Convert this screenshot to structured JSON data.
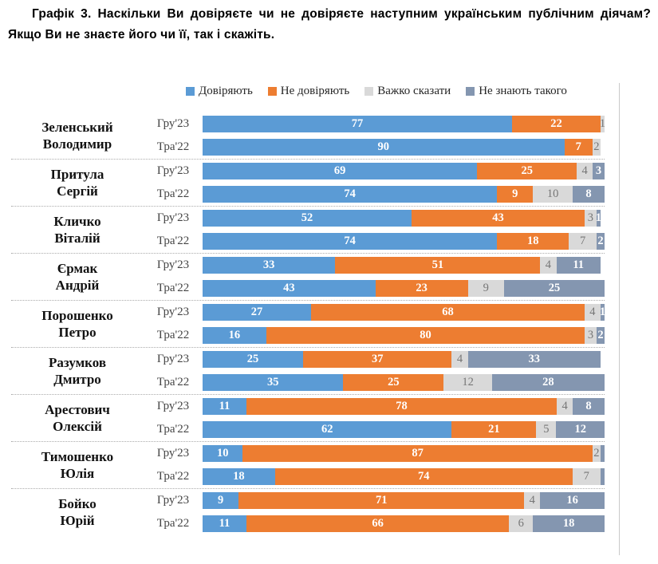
{
  "title": "Графік 3. Наскільки Ви довіряєте чи не довіряєте наступним українським публічним діячам? Якщо Ви не знаєте його чи її, так і скажіть.",
  "colors": {
    "trust": "#5B9BD5",
    "distrust": "#ED7D31",
    "hard": "#D9D9D9",
    "unknown": "#8496B0",
    "separator": "#ababab",
    "hard_label": "#767676",
    "period_label": "#444444"
  },
  "legend": [
    {
      "key": "trust",
      "label": "Довіряють"
    },
    {
      "key": "distrust",
      "label": "Не довіряють"
    },
    {
      "key": "hard",
      "label": "Важко сказати"
    },
    {
      "key": "unknown",
      "label": "Не знають такого"
    }
  ],
  "chart_data": {
    "type": "bar",
    "orientation": "horizontal-stacked",
    "xlim": [
      0,
      100
    ],
    "grid": false,
    "legend_position": "top",
    "series": [
      "Довіряють",
      "Не довіряють",
      "Важко сказати",
      "Не знають такого"
    ],
    "period_order": [
      "Гру'23",
      "Тра'22"
    ],
    "groups": [
      {
        "name": "Зеленський Володимир",
        "name_lines": [
          "Зеленський",
          "Володимир"
        ],
        "rows": [
          {
            "period": "Гру'23",
            "values": [
              77,
              22,
              1,
              0
            ],
            "labels": [
              "77",
              "22",
              "1",
              ""
            ]
          },
          {
            "period": "Тра'22",
            "values": [
              90,
              7,
              2,
              0
            ],
            "labels": [
              "90",
              "7",
              "2",
              ""
            ]
          }
        ]
      },
      {
        "name": "Притула Сергій",
        "name_lines": [
          "Притула",
          "Сергій"
        ],
        "rows": [
          {
            "period": "Гру'23",
            "values": [
              69,
              25,
              4,
              3
            ],
            "labels": [
              "69",
              "25",
              "4",
              "3"
            ]
          },
          {
            "period": "Тра'22",
            "values": [
              74,
              9,
              10,
              8
            ],
            "labels": [
              "74",
              "9",
              "10",
              "8"
            ]
          }
        ]
      },
      {
        "name": "Кличко Віталій",
        "name_lines": [
          "Кличко",
          "Віталій"
        ],
        "rows": [
          {
            "period": "Гру'23",
            "values": [
              52,
              43,
              3,
              1
            ],
            "labels": [
              "52",
              "43",
              "3",
              "1"
            ]
          },
          {
            "period": "Тра'22",
            "values": [
              74,
              18,
              7,
              2
            ],
            "labels": [
              "74",
              "18",
              "7",
              "2"
            ]
          }
        ]
      },
      {
        "name": "Єрмак Андрій",
        "name_lines": [
          "Єрмак",
          "Андрій"
        ],
        "rows": [
          {
            "period": "Гру'23",
            "values": [
              33,
              51,
              4,
              11
            ],
            "labels": [
              "33",
              "51",
              "4",
              "11"
            ]
          },
          {
            "period": "Тра'22",
            "values": [
              43,
              23,
              9,
              25
            ],
            "labels": [
              "43",
              "23",
              "9",
              "25"
            ]
          }
        ]
      },
      {
        "name": "Порошенко Петро",
        "name_lines": [
          "Порошенко",
          "Петро"
        ],
        "rows": [
          {
            "period": "Гру'23",
            "values": [
              27,
              68,
              4,
              1
            ],
            "labels": [
              "27",
              "68",
              "4",
              "1"
            ]
          },
          {
            "period": "Тра'22",
            "values": [
              16,
              80,
              3,
              2
            ],
            "labels": [
              "16",
              "80",
              "3",
              "2"
            ]
          }
        ]
      },
      {
        "name": "Разумков Дмитро",
        "name_lines": [
          "Разумков",
          "Дмитро"
        ],
        "rows": [
          {
            "period": "Гру'23",
            "values": [
              25,
              37,
              4,
              33
            ],
            "labels": [
              "25",
              "37",
              "4",
              "33"
            ]
          },
          {
            "period": "Тра'22",
            "values": [
              35,
              25,
              12,
              28
            ],
            "labels": [
              "35",
              "25",
              "12",
              "28"
            ]
          }
        ]
      },
      {
        "name": "Арестович Олексій",
        "name_lines": [
          "Арестович",
          "Олексій"
        ],
        "rows": [
          {
            "period": "Гру'23",
            "values": [
              11,
              78,
              4,
              8
            ],
            "labels": [
              "11",
              "78",
              "4",
              "8"
            ]
          },
          {
            "period": "Тра'22",
            "values": [
              62,
              21,
              5,
              12
            ],
            "labels": [
              "62",
              "21",
              "5",
              "12"
            ]
          }
        ]
      },
      {
        "name": "Тимошенко Юлія",
        "name_lines": [
          "Тимошенко",
          "Юлія"
        ],
        "rows": [
          {
            "period": "Гру'23",
            "values": [
              10,
              87,
              2,
              1
            ],
            "labels": [
              "10",
              "87",
              "2",
              ""
            ]
          },
          {
            "period": "Тра'22",
            "values": [
              18,
              74,
              7,
              1
            ],
            "labels": [
              "18",
              "74",
              "7",
              ""
            ]
          }
        ]
      },
      {
        "name": "Бойко Юрій",
        "name_lines": [
          "Бойко",
          "Юрій"
        ],
        "rows": [
          {
            "period": "Гру'23",
            "values": [
              9,
              71,
              4,
              16
            ],
            "labels": [
              "9",
              "71",
              "4",
              "16"
            ]
          },
          {
            "period": "Тра'22",
            "values": [
              11,
              66,
              6,
              18
            ],
            "labels": [
              "11",
              "66",
              "6",
              "18"
            ]
          }
        ]
      }
    ]
  }
}
